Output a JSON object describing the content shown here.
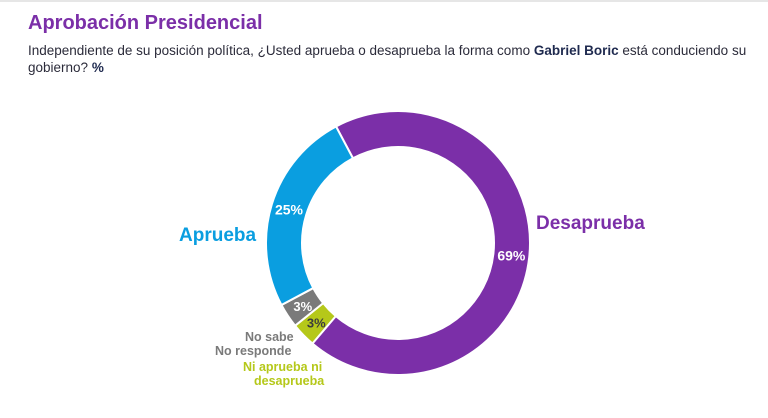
{
  "header": {
    "title": "Aprobación Presidencial",
    "subtitle_pre": "Independiente de su posición política, ¿Usted aprueba o desaprueba la forma como ",
    "subtitle_name": "Gabriel Boric",
    "subtitle_post": " está conduciendo su gobierno? ",
    "subtitle_unit": "%"
  },
  "chart_data": {
    "type": "pie",
    "donut": true,
    "slices": [
      {
        "name": "Desaprueba",
        "value": 69,
        "value_label": "69%",
        "color": "#7b2fa8"
      },
      {
        "name": "Ni aprueba ni desaprueba",
        "value": 3,
        "value_label": "3%",
        "color": "#b5c81a"
      },
      {
        "name": "No sabe No responde",
        "value": 3,
        "value_label": "3%",
        "color": "#7a7a7a"
      },
      {
        "name": "Aprueba",
        "value": 25,
        "value_label": "25%",
        "color": "#0a9ee0"
      }
    ]
  },
  "labels": {
    "desaprueba": "Desaprueba",
    "aprueba": "Aprueba",
    "nsnr_line1": "No sabe",
    "nsnr_line2": "No responde",
    "ni_line1": "Ni aprueba ni",
    "ni_line2": "desaprueba"
  }
}
